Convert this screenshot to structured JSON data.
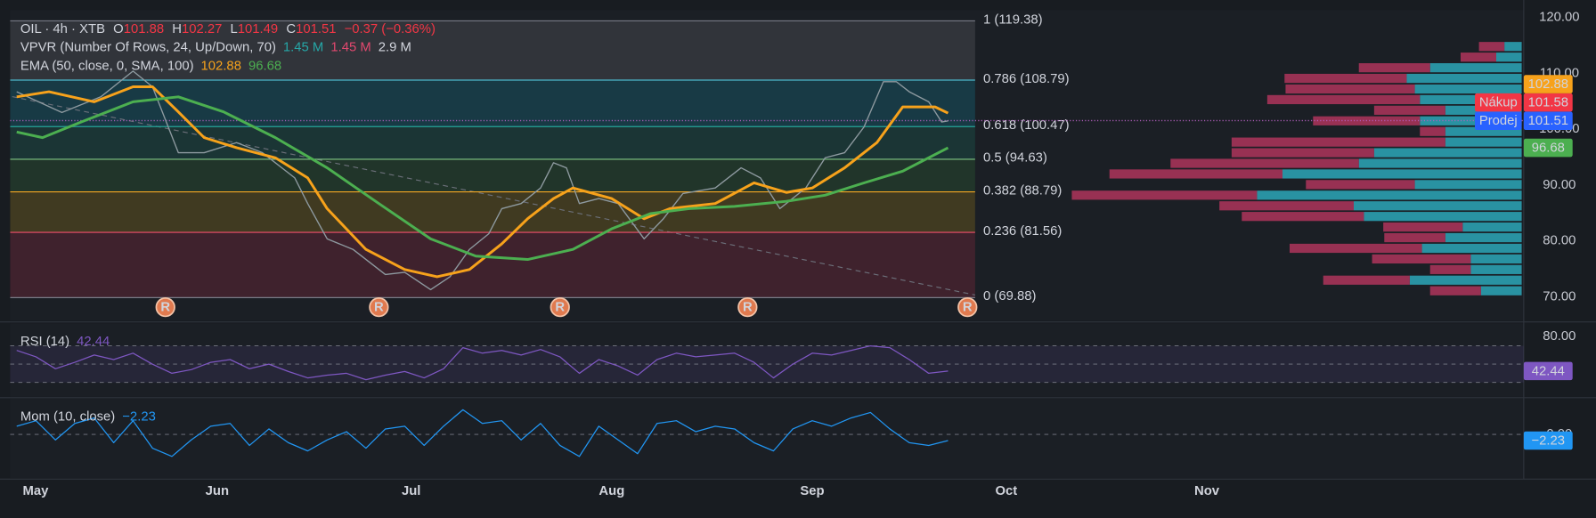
{
  "chart_data": [
    {
      "type": "line",
      "title": "OIL · 4h · XTB",
      "ohlc": [
        {
          "label": "O",
          "value": 101.88
        },
        {
          "label": "H",
          "value": 102.27
        },
        {
          "label": "L",
          "value": 101.49
        },
        {
          "label": "C",
          "value": 101.51
        }
      ],
      "ohlc_color": "#f23645",
      "change": "−0.37 (−0.36%)",
      "indicators": [
        {
          "label": "VPVR (Number Of Rows, 24, Up/Down, 70)",
          "readings": [
            {
              "text": "1.45 M",
              "color": "#26a6a6"
            },
            {
              "text": "1.45 M",
              "color": "#e0486e"
            },
            {
              "text": "2.9 M",
              "color": "#d1d4dc"
            }
          ]
        },
        {
          "label": "EMA (50, close, 0, SMA, 100)"
        }
      ],
      "xlim": [
        -1,
        233
      ],
      "xticks": [
        {
          "value": 0,
          "label": "May"
        },
        {
          "value": 31,
          "label": "Jun"
        },
        {
          "value": 61,
          "label": "Jul"
        },
        {
          "value": 92,
          "label": "Aug"
        },
        {
          "value": 123,
          "label": "Sep"
        },
        {
          "value": 153,
          "label": "Oct"
        },
        {
          "value": 184,
          "label": "Nov"
        }
      ],
      "ylim": [
        65.8,
        121.3
      ],
      "yticks": [
        {
          "value": 120,
          "label": "120.00"
        },
        {
          "value": 110,
          "label": "110.00"
        },
        {
          "value": 100,
          "label": "100.00"
        },
        {
          "value": 90,
          "label": "90.00"
        },
        {
          "value": 80,
          "label": "80.00"
        },
        {
          "value": 70,
          "label": "70.00"
        }
      ],
      "grid": false,
      "series": [
        {
          "color": "#8e9aa0",
          "x": [
            0,
            7,
            13,
            18,
            21,
            25,
            29,
            34,
            38,
            43,
            45,
            48,
            52,
            57,
            60,
            64,
            67,
            70,
            73,
            75,
            78,
            81,
            83,
            85,
            87,
            90,
            93,
            97,
            100,
            103,
            108,
            112,
            115,
            118,
            122,
            125,
            128,
            131,
            134,
            136,
            138,
            141,
            143,
            144
          ],
          "values": [
            106.7,
            103,
            105.8,
            110.4,
            107.6,
            95.8,
            95.8,
            97.6,
            95.8,
            91.3,
            86.7,
            80.4,
            78.5,
            74,
            74.4,
            71.3,
            73.6,
            78.5,
            81.3,
            85.8,
            86.7,
            89.5,
            94,
            93.1,
            86.7,
            87.6,
            86.7,
            80.4,
            84,
            88.5,
            89.5,
            93.1,
            91.3,
            85.8,
            89.5,
            94.9,
            95.8,
            100.4,
            108.5,
            108.5,
            106.7,
            104.9,
            101.3,
            101.51
          ]
        },
        {
          "color": "#f7a21b",
          "last_value_badge": true,
          "x": [
            0,
            5,
            12,
            18,
            21,
            25,
            29,
            34,
            40,
            45,
            48,
            54,
            60,
            65,
            70,
            75,
            79,
            83,
            86,
            92,
            97,
            101,
            108,
            114,
            119,
            123,
            128,
            133,
            137,
            142,
            144
          ],
          "values": [
            105.8,
            106.7,
            104.9,
            107.6,
            107.6,
            103.1,
            98.5,
            96.7,
            94.9,
            91.3,
            85.8,
            78.5,
            74.9,
            73.6,
            74.9,
            79.5,
            84,
            87.6,
            89.5,
            87.6,
            84,
            85.8,
            86.7,
            90.4,
            88.7,
            89.5,
            93.1,
            97.6,
            104,
            104,
            102.88
          ]
        },
        {
          "color": "#4caf50",
          "last_value_badge": true,
          "x": [
            0,
            4,
            10,
            18,
            25,
            32,
            40,
            48,
            56,
            64,
            71,
            79,
            86,
            92,
            98,
            104,
            111,
            119,
            125,
            131,
            137,
            144
          ],
          "values": [
            99.5,
            98.5,
            101.3,
            104.9,
            105.8,
            103.1,
            98.5,
            93.1,
            86.7,
            80.4,
            77.3,
            76.7,
            78.5,
            82.2,
            84.9,
            85.8,
            86.2,
            87.1,
            88.2,
            90.4,
            92.5,
            96.68
          ]
        }
      ],
      "fib_levels": [
        {
          "label": "1 (119.38)",
          "value": 119.38,
          "color": "#787b86",
          "fill": "#35383e"
        },
        {
          "label": "0.786 (108.79)",
          "value": 108.79,
          "color": "#4db6c9",
          "fill": "#173f4b"
        },
        {
          "label": "0.618 (100.47)",
          "value": 100.47,
          "color": "#26a69a",
          "fill": "#1b3a38"
        },
        {
          "label": "0.5 (94.63)",
          "value": 94.63,
          "color": "#81c784",
          "fill": "#223a2c"
        },
        {
          "label": "0.382 (88.79)",
          "value": 88.79,
          "color": "#f5a623",
          "fill": "#473f21"
        },
        {
          "label": "0.236 (81.56)",
          "value": 81.56,
          "color": "#f0506e",
          "fill": "#45232f"
        },
        {
          "label": "0 (69.88)",
          "value": 69.88,
          "color": "#787b86"
        }
      ],
      "volume_profile": {
        "xlim": [
          0,
          450
        ],
        "up_color": "#2b9fb0",
        "down_color": "#b8365f",
        "price_levels": [
          114.8,
          112.9,
          111.0,
          109.1,
          107.2,
          105.3,
          103.4,
          101.5,
          99.6,
          97.7,
          95.8,
          93.9,
          92.0,
          90.1,
          88.2,
          86.3,
          84.4,
          82.5,
          80.6,
          78.7,
          76.8,
          74.9,
          73.0,
          71.1
        ],
        "up": [
          17,
          25,
          90,
          113,
          105,
          100,
          75,
          100,
          75,
          75,
          145,
          160,
          235,
          105,
          260,
          165,
          155,
          58,
          75,
          98,
          50,
          50,
          110,
          40
        ],
        "down": [
          25,
          35,
          70,
          120,
          127,
          150,
          70,
          105,
          25,
          210,
          140,
          185,
          170,
          107,
          182,
          132,
          120,
          78,
          60,
          130,
          97,
          40,
          85,
          50
        ]
      },
      "quotes": [
        {
          "text": "Nákup",
          "value": 101.58,
          "color": "#f23645"
        },
        {
          "text": "Prodej",
          "value": 101.51,
          "color": "#2962ff"
        }
      ],
      "events": [
        {
          "x": 23,
          "label": "R"
        },
        {
          "x": 56,
          "label": "R"
        },
        {
          "x": 84,
          "label": "R"
        },
        {
          "x": 113,
          "label": "R"
        },
        {
          "x": 147,
          "label": "R"
        }
      ]
    },
    {
      "type": "line",
      "title": "RSI (14)",
      "xlim": [
        -1,
        233
      ],
      "x": [
        0,
        3,
        6,
        9,
        12,
        15,
        18,
        21,
        24,
        27,
        30,
        33,
        36,
        39,
        42,
        45,
        48,
        51,
        54,
        57,
        60,
        63,
        66,
        69,
        72,
        75,
        78,
        81,
        84,
        87,
        90,
        93,
        96,
        99,
        102,
        105,
        108,
        111,
        114,
        117,
        120,
        123,
        126,
        129,
        132,
        135,
        138,
        141,
        144
      ],
      "ylim": [
        14.4,
        94.4
      ],
      "yticks": [
        {
          "value": 80,
          "label": "80.00"
        }
      ],
      "levels": [
        70,
        50,
        30
      ],
      "band_color": "#7e57c2",
      "series": [
        {
          "color": "#7e57c2",
          "last_value_badge": true,
          "values": [
            65,
            58,
            45,
            52,
            60,
            55,
            62,
            50,
            40,
            44,
            52,
            55,
            45,
            50,
            42,
            35,
            38,
            40,
            33,
            38,
            42,
            35,
            45,
            68,
            62,
            65,
            60,
            66,
            58,
            40,
            55,
            48,
            38,
            55,
            62,
            58,
            60,
            62,
            52,
            35,
            50,
            62,
            60,
            65,
            70,
            68,
            55,
            40,
            42.44
          ]
        }
      ]
    },
    {
      "type": "line",
      "title": "Mom (10, close)",
      "xlim": [
        -1,
        233
      ],
      "x": [
        0,
        3,
        6,
        9,
        12,
        15,
        18,
        21,
        24,
        27,
        30,
        33,
        36,
        39,
        42,
        45,
        48,
        51,
        54,
        57,
        60,
        63,
        66,
        69,
        72,
        75,
        78,
        81,
        84,
        87,
        90,
        93,
        96,
        99,
        102,
        105,
        108,
        111,
        114,
        117,
        120,
        123,
        126,
        129,
        132,
        135,
        138,
        141,
        144
      ],
      "ylim": [
        -15.9,
        13
      ],
      "yticks": [
        {
          "value": 0,
          "label": "0.00"
        }
      ],
      "levels": [
        0
      ],
      "series": [
        {
          "color": "#2196f3",
          "last_value_badge": true,
          "values": [
            3,
            5,
            -2,
            4,
            6,
            -3,
            5,
            -5,
            -8,
            -2,
            3,
            4,
            -4,
            2,
            -3,
            -6,
            -2,
            1,
            -5,
            2,
            3,
            -4,
            3,
            9,
            4,
            5,
            -2,
            4,
            -4,
            -8,
            3,
            -2,
            -7,
            4,
            5,
            1,
            3,
            2,
            -3,
            -6,
            2,
            5,
            3,
            6,
            8,
            2,
            -3,
            -4,
            -2.23
          ],
          "value_labels": [
            null,
            null,
            null,
            null,
            null,
            null,
            null,
            null,
            null,
            null,
            null,
            null,
            null,
            null,
            null,
            null,
            null,
            null,
            null,
            null,
            null,
            null,
            null,
            null,
            null,
            null,
            null,
            null,
            null,
            null,
            null,
            null,
            null,
            null,
            null,
            null,
            null,
            null,
            null,
            null,
            null,
            null,
            null,
            null,
            null,
            null,
            null,
            null,
            "−2.23"
          ]
        }
      ]
    }
  ]
}
